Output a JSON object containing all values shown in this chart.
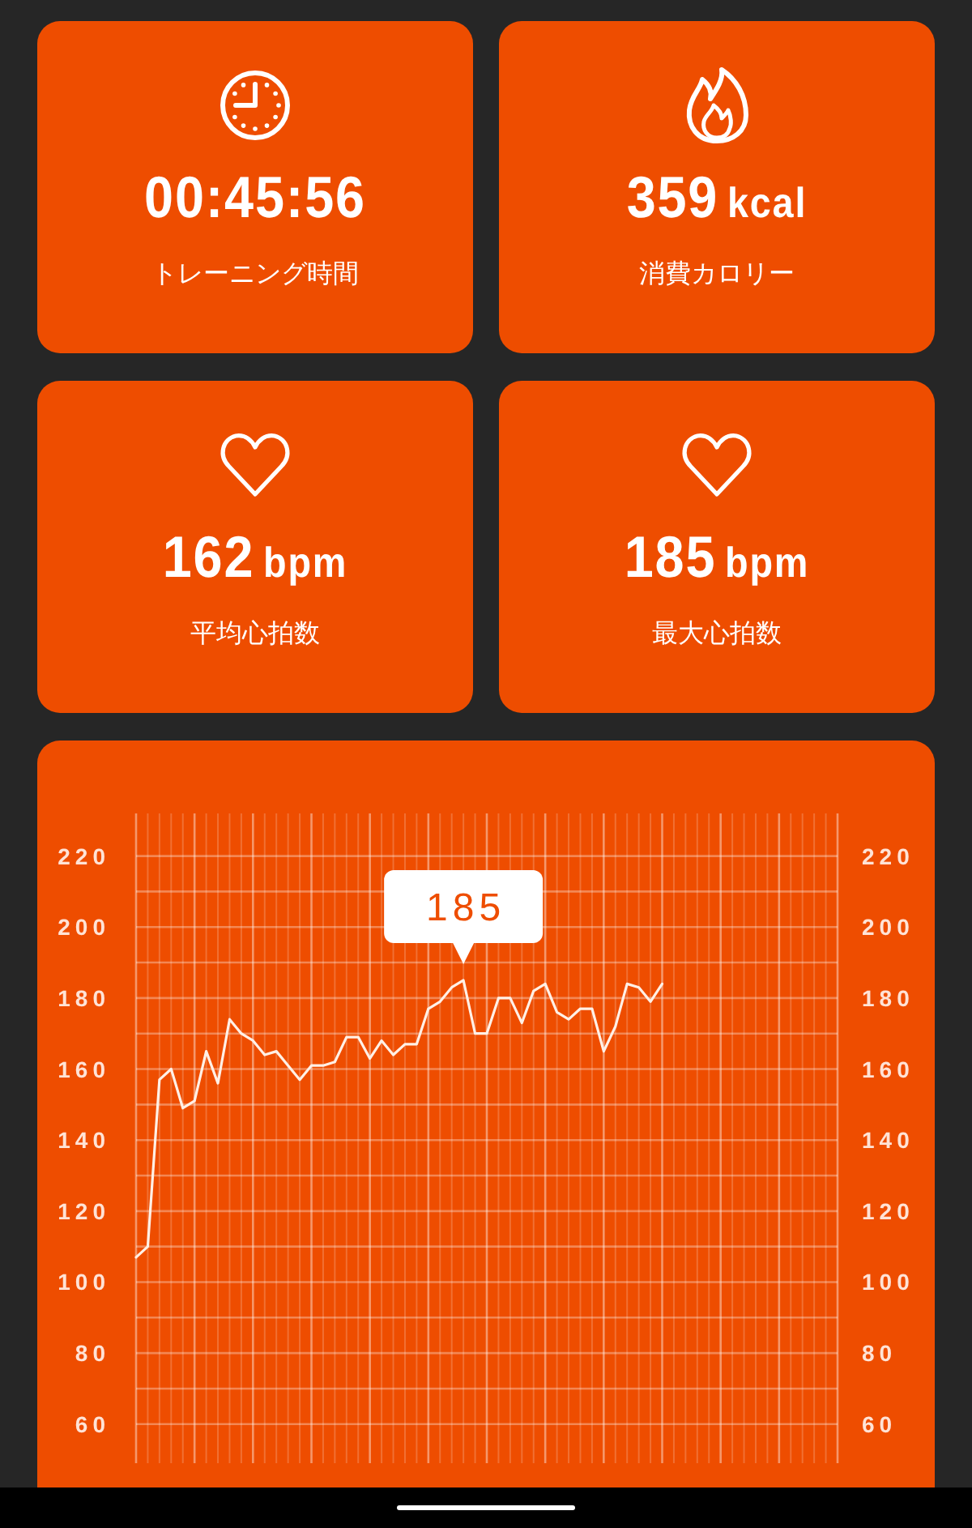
{
  "chart_data": [
    {
      "type": "other",
      "title": "00:45:56",
      "subtitle": "トレーニング時間"
    },
    {
      "type": "other",
      "title": "359",
      "subtitle": "消費カロリー",
      "annotations": [
        "kcal"
      ]
    },
    {
      "type": "other",
      "title": "162",
      "subtitle": "平均心拍数",
      "annotations": [
        "bpm"
      ]
    },
    {
      "type": "other",
      "title": "185",
      "subtitle": "最大心拍数",
      "annotations": [
        "bpm"
      ]
    },
    {
      "type": "line",
      "categories": [
        null,
        null,
        null,
        null,
        null,
        null,
        null,
        null,
        null,
        null,
        null,
        null,
        null,
        null,
        null,
        null,
        null,
        null,
        null,
        null,
        null,
        null,
        null,
        null,
        null,
        null,
        null,
        null,
        null,
        null,
        null,
        null,
        null,
        null,
        null,
        null,
        null,
        null,
        null,
        null,
        null,
        null,
        null,
        null,
        null,
        null,
        null,
        null,
        null,
        null,
        null,
        null,
        null,
        null,
        null,
        null,
        null,
        null,
        null,
        null,
        null
      ],
      "series": [
        {
          "color": "#fff0e6",
          "values": [
            107,
            110,
            157,
            160,
            149,
            151,
            165,
            156,
            174,
            170,
            168,
            164,
            165,
            161,
            157,
            161,
            161,
            162,
            169,
            169,
            163,
            168,
            164,
            167,
            167,
            177,
            179,
            183,
            185,
            170,
            170,
            180,
            180,
            173,
            182,
            184,
            176,
            174,
            177,
            177,
            165,
            172,
            184,
            183,
            179,
            184,
            null,
            null,
            null,
            null,
            null,
            null,
            null,
            null,
            null,
            null,
            null,
            null,
            null,
            null,
            null
          ],
          "value_labels": [
            null,
            null,
            null,
            null,
            null,
            null,
            null,
            null,
            null,
            null,
            null,
            null,
            null,
            null,
            null,
            null,
            null,
            null,
            null,
            null,
            null,
            null,
            null,
            null,
            null,
            null,
            null,
            null,
            "185",
            null,
            null,
            null,
            null,
            null,
            null,
            null,
            null,
            null,
            null,
            null,
            null,
            null,
            null,
            null,
            null,
            null,
            null,
            null,
            null,
            null,
            null,
            null,
            null,
            null,
            null,
            null,
            null,
            null,
            null,
            null,
            null
          ]
        }
      ],
      "ylim": [
        49,
        232
      ],
      "yticks": [
        60,
        {
          "value": 70,
          "label": null
        },
        80,
        {
          "value": 90,
          "label": null
        },
        100,
        {
          "value": 110,
          "label": null
        },
        120,
        {
          "value": 130,
          "label": null
        },
        140,
        {
          "value": 150,
          "label": null
        },
        160,
        {
          "value": 170,
          "label": null
        },
        180,
        {
          "value": 190,
          "label": null
        },
        200,
        {
          "value": 210,
          "label": null
        },
        220
      ],
      "y2lim": [
        49,
        232
      ],
      "y2ticks": [
        60,
        80,
        100,
        120,
        140,
        160,
        180,
        200,
        220
      ],
      "grid": true
    }
  ]
}
